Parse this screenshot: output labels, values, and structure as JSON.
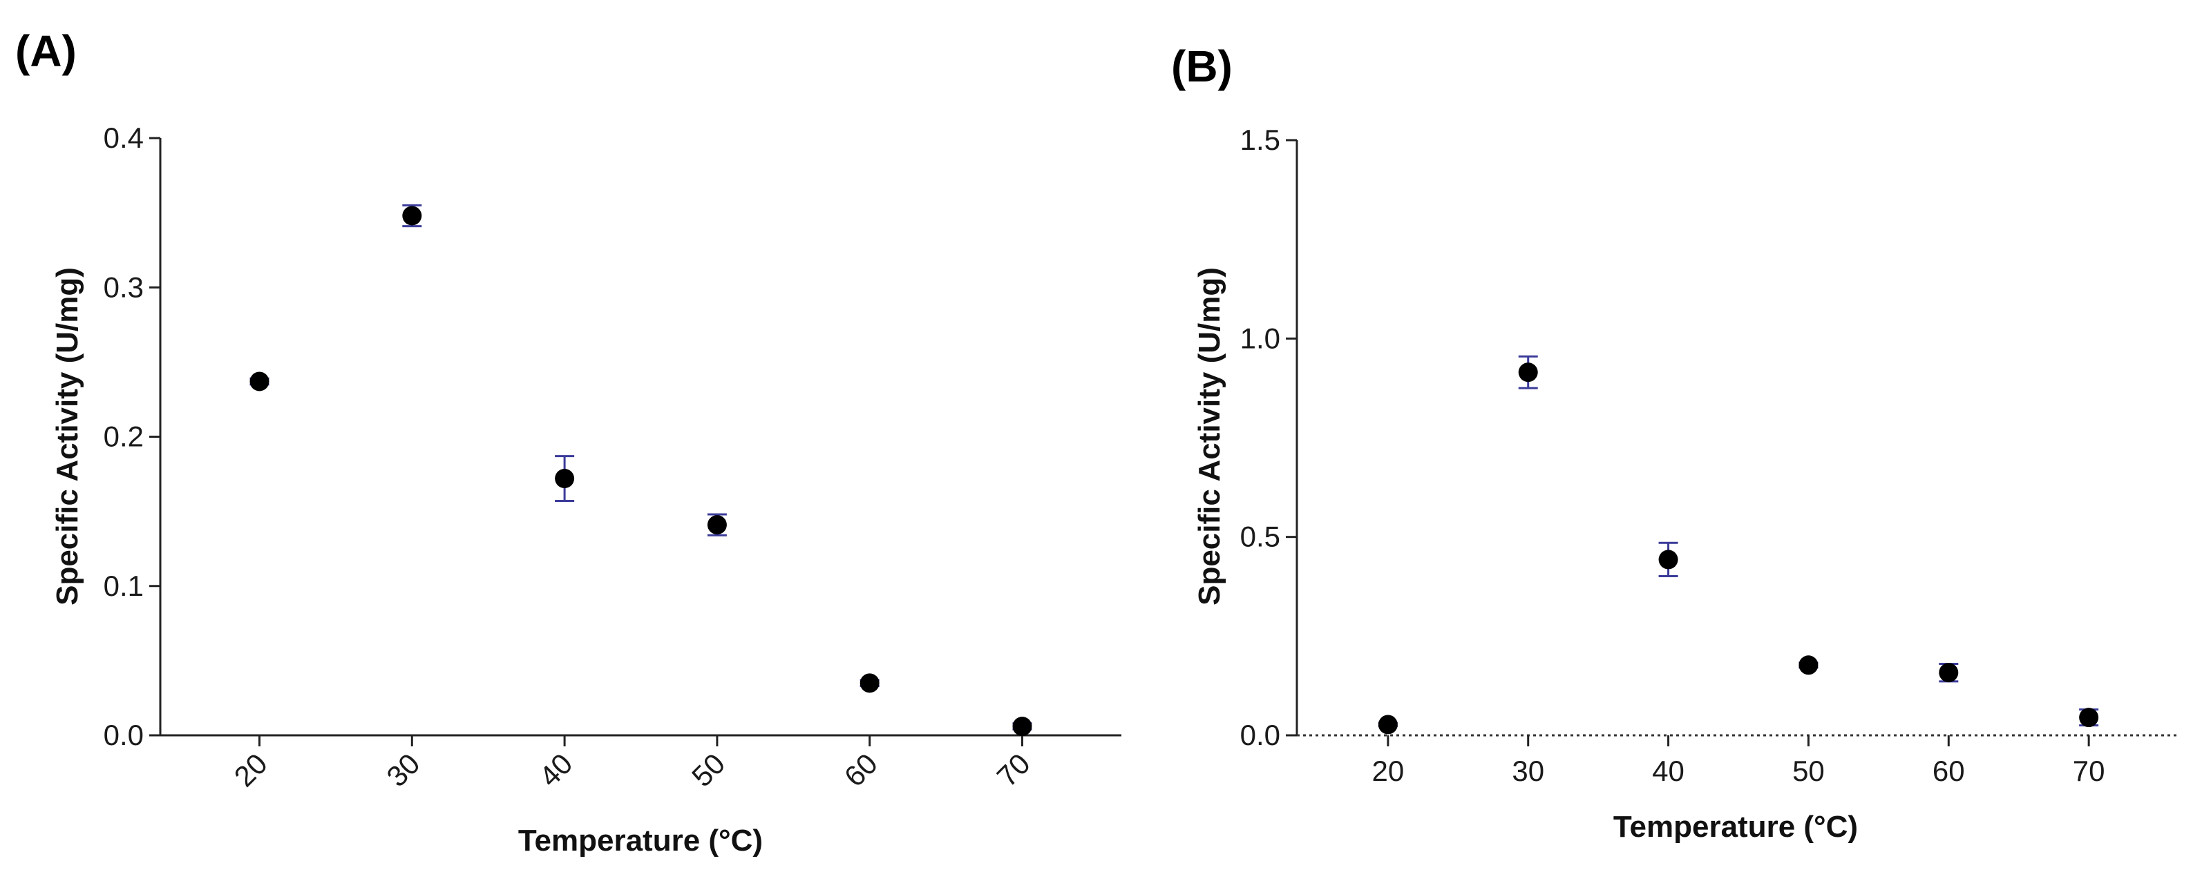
{
  "colors": {
    "marker": "#000000",
    "error_bar": "#3b3b9a",
    "axis": "#222222"
  },
  "chart_data": [
    {
      "panel_label": "(A)",
      "type": "scatter",
      "xlabel": "Temperature (°C)",
      "ylabel": "Specific Activity (U/mg)",
      "xlim": [
        13.5,
        76.5
      ],
      "ylim": [
        0,
        0.4
      ],
      "xticks": [
        "20",
        "30",
        "40",
        "50",
        "60",
        "70"
      ],
      "xtick_values": [
        20,
        30,
        40,
        50,
        60,
        70
      ],
      "yticks": [
        "0.0",
        "0.1",
        "0.2",
        "0.3",
        "0.4"
      ],
      "ytick_values": [
        0,
        0.1,
        0.2,
        0.3,
        0.4
      ],
      "xtick_rotation": "45deg",
      "zero_line": false,
      "x": [
        20,
        30,
        40,
        50,
        60,
        70
      ],
      "y": [
        0.237,
        0.348,
        0.172,
        0.141,
        0.035,
        0.006
      ],
      "yerr": [
        0.002,
        0.007,
        0.015,
        0.007,
        0.002,
        0.002
      ]
    },
    {
      "panel_label": "(B)",
      "type": "scatter",
      "xlabel": "Temperature (°C)",
      "ylabel": "Specific Activity (U/mg)",
      "xlim": [
        13.5,
        76.5
      ],
      "ylim": [
        0,
        1.5
      ],
      "xticks": [
        "20",
        "30",
        "40",
        "50",
        "60",
        "70"
      ],
      "xtick_values": [
        20,
        30,
        40,
        50,
        60,
        70
      ],
      "yticks": [
        "0.0",
        "0.5",
        "1.0",
        "1.5"
      ],
      "ytick_values": [
        0,
        0.5,
        1.0,
        1.5
      ],
      "xtick_rotation": "0deg",
      "zero_line": true,
      "x": [
        20,
        30,
        40,
        50,
        60,
        70
      ],
      "y": [
        0.027,
        0.915,
        0.443,
        0.177,
        0.158,
        0.045
      ],
      "yerr": [
        0.004,
        0.04,
        0.042,
        0.006,
        0.022,
        0.02
      ]
    }
  ]
}
